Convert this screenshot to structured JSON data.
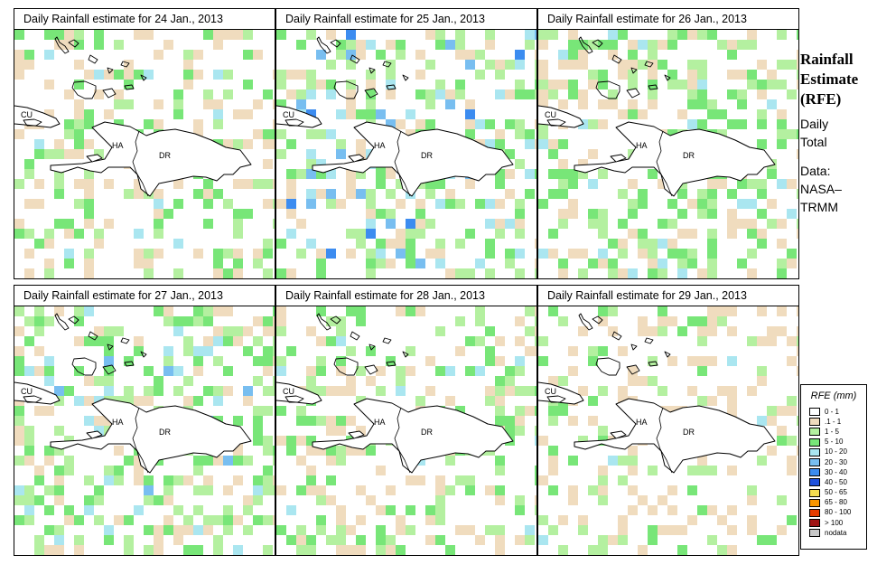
{
  "chart_data": {
    "type": "heatmap",
    "title": "Daily Rainfall estimate",
    "legend": {
      "title": "RFE (mm)",
      "classes": [
        {
          "label": "0 - 1",
          "color": "#ffffff"
        },
        {
          "label": ".1 - 1",
          "color": "#f0dcbe"
        },
        {
          "label": "1 - 5",
          "color": "#b4f0a0"
        },
        {
          "label": "5 - 10",
          "color": "#78e678"
        },
        {
          "label": "10 - 20",
          "color": "#aae6f0"
        },
        {
          "label": "20 - 30",
          "color": "#78bef0"
        },
        {
          "label": "30 - 40",
          "color": "#3c8cf0"
        },
        {
          "label": "40 - 50",
          "color": "#1e50dc"
        },
        {
          "label": "50 - 65",
          "color": "#f5dc50"
        },
        {
          "label": "65 - 80",
          "color": "#fa9600"
        },
        {
          "label": "80 - 100",
          "color": "#e63c00"
        },
        {
          "label": "> 100",
          "color": "#a01414"
        },
        {
          "label": "nodata",
          "color": "#c8c8c8"
        }
      ]
    },
    "map_labels": [
      "CU",
      "HA",
      "DR"
    ],
    "panels": [
      {
        "title": "Daily Rainfall estimate for  24 Jan., 2013",
        "date": "24 Jan., 2013",
        "coverage": {
          "tan": 0.16,
          "light_green": 0.07,
          "green": 0.07,
          "light_blue": 0.015,
          "blue": 0.0,
          "dark_blue": 0.0
        }
      },
      {
        "title": "Daily Rainfall estimate for  25 Jan., 2013",
        "date": "25 Jan., 2013",
        "coverage": {
          "tan": 0.1,
          "light_green": 0.14,
          "green": 0.1,
          "light_blue": 0.05,
          "blue": 0.03,
          "dark_blue": 0.005
        }
      },
      {
        "title": "Daily Rainfall estimate for  26 Jan., 2013",
        "date": "26 Jan., 2013",
        "coverage": {
          "tan": 0.14,
          "light_green": 0.12,
          "green": 0.12,
          "light_blue": 0.02,
          "blue": 0.0,
          "dark_blue": 0.0
        }
      },
      {
        "title": "Daily Rainfall estimate for  27 Jan., 2013",
        "date": "27 Jan., 2013",
        "coverage": {
          "tan": 0.12,
          "light_green": 0.13,
          "green": 0.13,
          "light_blue": 0.03,
          "blue": 0.02,
          "dark_blue": 0.0
        }
      },
      {
        "title": "Daily Rainfall estimate for  28 Jan., 2013",
        "date": "28 Jan., 2013",
        "coverage": {
          "tan": 0.15,
          "light_green": 0.11,
          "green": 0.09,
          "light_blue": 0.01,
          "blue": 0.0,
          "dark_blue": 0.0
        }
      },
      {
        "title": "Daily Rainfall estimate for  29 Jan., 2013",
        "date": "29 Jan., 2013",
        "coverage": {
          "tan": 0.17,
          "light_green": 0.07,
          "green": 0.05,
          "light_blue": 0.005,
          "blue": 0.0,
          "dark_blue": 0.0
        }
      }
    ]
  },
  "sidebar": {
    "title_line1": "Rainfall",
    "title_line2": "Estimate",
    "title_line3": "(RFE)",
    "text_line1": "Daily",
    "text_line2": "Total",
    "data_line1": "Data:",
    "data_line2": "NASA–",
    "data_line3": "TRMM"
  }
}
